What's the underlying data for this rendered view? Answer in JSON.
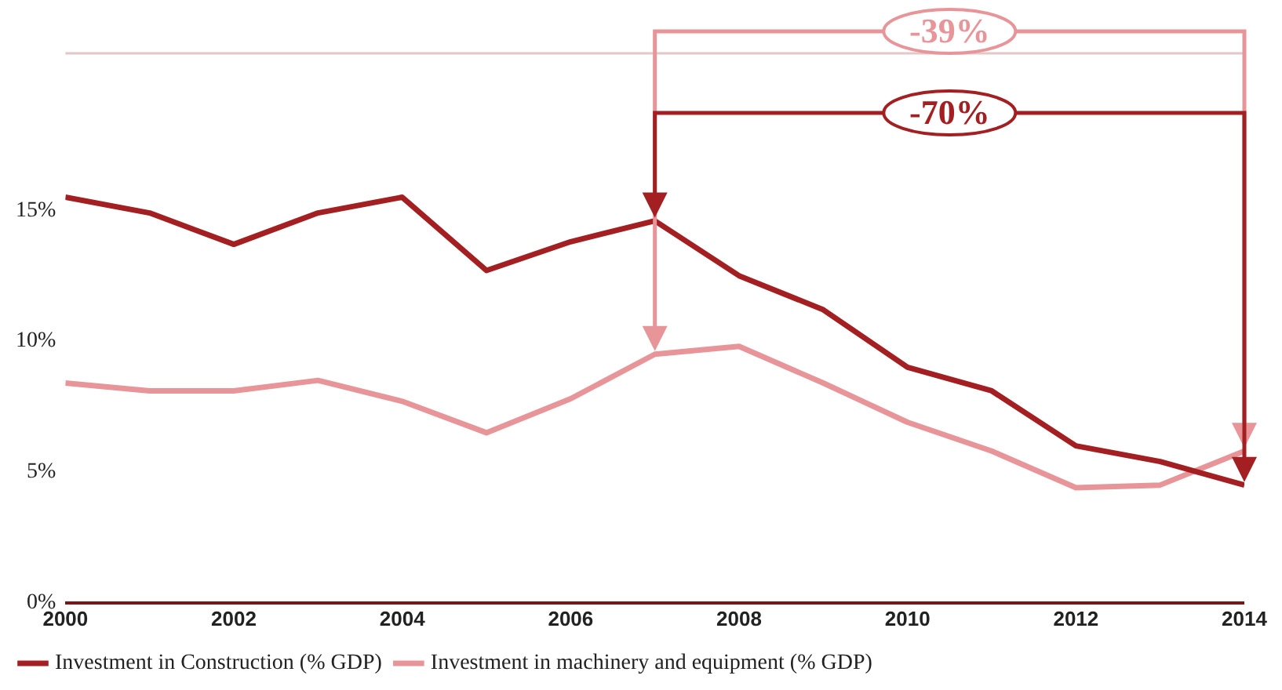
{
  "chart_data": {
    "type": "line",
    "x": [
      2000,
      2001,
      2002,
      2003,
      2004,
      2005,
      2006,
      2007,
      2008,
      2009,
      2010,
      2011,
      2012,
      2013,
      2014
    ],
    "series": [
      {
        "name": "Investment in Construction (% GDP)",
        "color": "#a31f22",
        "values": [
          15.5,
          14.9,
          13.7,
          14.9,
          15.5,
          12.7,
          13.8,
          14.6,
          12.5,
          11.2,
          9.0,
          8.1,
          6.0,
          5.4,
          4.5
        ]
      },
      {
        "name": "Investment in machinery and equipment (% GDP)",
        "color": "#e8959a",
        "values": [
          8.4,
          8.1,
          8.1,
          8.5,
          7.7,
          6.5,
          7.8,
          9.5,
          9.8,
          8.4,
          6.9,
          5.8,
          4.4,
          4.5,
          5.8
        ]
      }
    ],
    "xlim": [
      2000,
      2014
    ],
    "xticks": [
      2000,
      2002,
      2004,
      2006,
      2008,
      2010,
      2012,
      2014
    ],
    "ylim": [
      0,
      21
    ],
    "yticks": [
      {
        "value": 0,
        "label": "0%"
      },
      {
        "value": 5,
        "label": "5%"
      },
      {
        "value": 10,
        "label": "10%"
      },
      {
        "value": 15,
        "label": "15%"
      }
    ],
    "annotations": [
      "-39%",
      "-70%"
    ],
    "grid": false,
    "legend": "bottom",
    "marker": "none",
    "line_style": "solid"
  }
}
